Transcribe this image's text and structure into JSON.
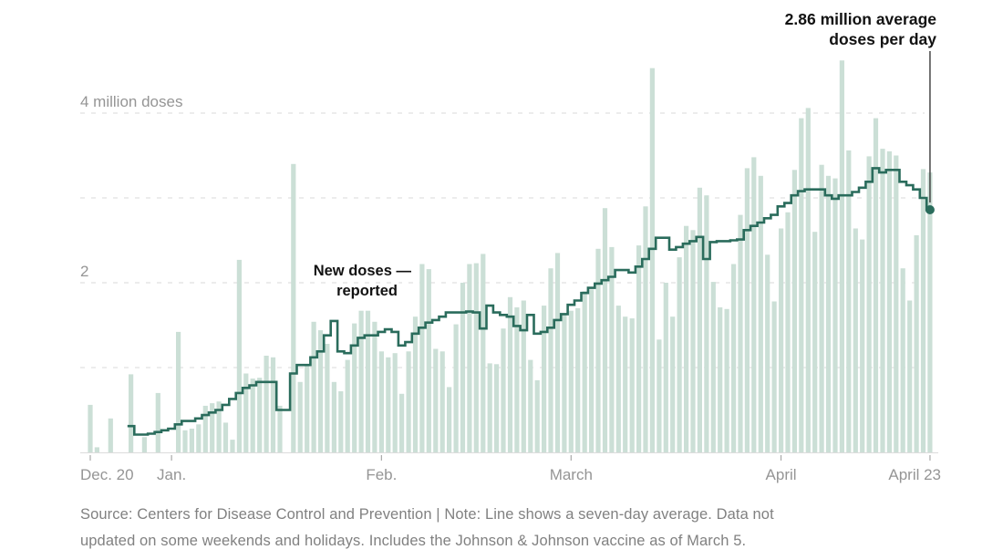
{
  "annotations": {
    "avg_callout_line1": "2.86 million average",
    "avg_callout_line2": "doses per day",
    "bars_label_line1": "New doses —",
    "bars_label_line2": "reported"
  },
  "footer": {
    "line1": "Source: Centers for Disease Control and Prevention | Note: Line shows a seven-day average. Data not",
    "line2": "updated on some weekends and holidays. Includes the Johnson & Johnson vaccine as of March 5."
  },
  "colors": {
    "bar_fill": "#cbdfd6",
    "line": "#2a6c5c",
    "grid": "#d9d9d9",
    "baseline": "#dcdcdc",
    "tick": "#a9a9a9",
    "axis_text": "#959595",
    "annotation_text": "#121212",
    "pointer": "#3a3a3a",
    "background": "#ffffff"
  },
  "chart_data": {
    "type": "bar",
    "title": "",
    "xlabel": "",
    "ylabel": "million doses",
    "start_date": "Dec. 20",
    "end_date": "April 23",
    "x": {
      "days": 125,
      "ticks": [
        {
          "i": 0,
          "label": "Dec. 20",
          "align": "start"
        },
        {
          "i": 12,
          "label": "Jan.",
          "align": "middle"
        },
        {
          "i": 43,
          "label": "Feb.",
          "align": "middle"
        },
        {
          "i": 71,
          "label": "March",
          "align": "middle"
        },
        {
          "i": 102,
          "label": "April",
          "align": "middle"
        },
        {
          "i": 124,
          "label": "April 23",
          "align": "end"
        }
      ]
    },
    "y": {
      "range": [
        0,
        4.7
      ],
      "grid": "dashed",
      "ticks": [
        {
          "v": 4,
          "label": "4 million doses"
        },
        {
          "v": 3,
          "label": ""
        },
        {
          "v": 2,
          "label": "2"
        },
        {
          "v": 1,
          "label": ""
        }
      ]
    },
    "series": [
      {
        "name": "New doses reported",
        "type": "bar",
        "values": [
          0.56,
          0.06,
          0,
          0.4,
          0,
          0,
          0.92,
          0,
          0.18,
          0,
          0.7,
          0,
          0,
          1.42,
          0.26,
          0.28,
          0.33,
          0.55,
          0.58,
          0.6,
          0.35,
          0.15,
          2.27,
          0.93,
          0.87,
          0.88,
          1.14,
          1.12,
          0.55,
          0,
          3.4,
          0.83,
          1.03,
          1.54,
          1.44,
          1.28,
          0.83,
          0.72,
          1.09,
          1.52,
          1.67,
          1.67,
          1.54,
          1.19,
          1.12,
          1.17,
          0.69,
          1.19,
          1.6,
          2.22,
          2.16,
          1.22,
          1.19,
          0.77,
          1.51,
          2.0,
          2.22,
          2.23,
          2.34,
          1.05,
          1.04,
          1.46,
          1.83,
          1.71,
          1.79,
          1.09,
          0.85,
          1.73,
          2.17,
          2.35,
          1.63,
          1.67,
          1.7,
          1.9,
          1.92,
          2.4,
          2.88,
          2.42,
          1.73,
          1.6,
          1.58,
          2.44,
          2.9,
          4.53,
          1.33,
          2.0,
          1.6,
          2.3,
          2.67,
          2.62,
          3.12,
          3.03,
          2.01,
          1.71,
          1.69,
          2.22,
          2.8,
          3.35,
          3.48,
          3.26,
          2.33,
          1.78,
          2.64,
          2.83,
          3.33,
          3.94,
          4.06,
          2.6,
          3.39,
          3.26,
          3.23,
          4.62,
          3.56,
          2.64,
          2.51,
          3.49,
          3.94,
          3.58,
          3.55,
          3.5,
          2.17,
          1.79,
          2.56,
          3.34,
          3.3
        ]
      },
      {
        "name": "Seven-day average",
        "type": "line",
        "values": [
          null,
          null,
          null,
          null,
          null,
          null,
          0.31,
          0.21,
          0.21,
          0.22,
          0.24,
          0.26,
          0.28,
          0.33,
          0.37,
          0.37,
          0.4,
          0.44,
          0.47,
          0.5,
          0.56,
          0.63,
          0.7,
          0.76,
          0.79,
          0.83,
          0.83,
          0.83,
          0.5,
          0.5,
          0.93,
          1.03,
          1.03,
          1.12,
          1.19,
          1.38,
          1.55,
          1.19,
          1.17,
          1.26,
          1.35,
          1.38,
          1.38,
          1.42,
          1.45,
          1.42,
          1.26,
          1.3,
          1.4,
          1.47,
          1.53,
          1.56,
          1.6,
          1.65,
          1.65,
          1.65,
          1.66,
          1.65,
          1.46,
          1.73,
          1.65,
          1.62,
          1.6,
          1.49,
          1.44,
          1.62,
          1.4,
          1.42,
          1.47,
          1.56,
          1.63,
          1.74,
          1.79,
          1.88,
          1.94,
          1.99,
          2.03,
          2.07,
          2.15,
          2.15,
          2.12,
          2.19,
          2.28,
          2.4,
          2.53,
          2.53,
          2.39,
          2.42,
          2.46,
          2.49,
          2.54,
          2.28,
          2.48,
          2.49,
          2.49,
          2.5,
          2.51,
          2.62,
          2.67,
          2.71,
          2.76,
          2.8,
          2.9,
          2.94,
          3.03,
          3.08,
          3.1,
          3.1,
          3.1,
          3.03,
          2.99,
          3.03,
          3.03,
          3.07,
          3.12,
          3.19,
          3.35,
          3.3,
          3.33,
          3.33,
          3.19,
          3.15,
          3.1,
          3.0,
          2.86
        ]
      }
    ],
    "end_point": {
      "index": 124,
      "value": 2.86,
      "label": "2.86 million average doses per day"
    }
  }
}
